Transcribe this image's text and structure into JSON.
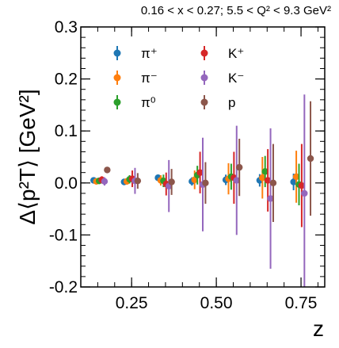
{
  "chart_data": {
    "type": "scatter",
    "title": "0.16 < x < 0.27;  5.5 < Q² < 9.3 GeV²",
    "xlabel": "z",
    "ylabel": "Δ⟨p²T⟩ [GeV²]",
    "xlim": [
      0.1,
      0.82
    ],
    "ylim": [
      -0.2,
      0.3
    ],
    "xticks": [
      0.25,
      0.5,
      0.75
    ],
    "xtick_labels": [
      "0.25",
      "0.50",
      "0.75"
    ],
    "yticks": [
      -0.2,
      -0.1,
      0.0,
      0.1,
      0.2,
      0.3
    ],
    "ytick_labels": [
      "-0.2",
      "-0.1",
      "0.0",
      "0.1",
      "0.2",
      "0.3"
    ],
    "grid": false,
    "legend_position": "top",
    "series": [
      {
        "name": "π⁺",
        "color": "#1f77b4",
        "x": [
          0.138,
          0.228,
          0.328,
          0.428,
          0.528,
          0.628,
          0.728
        ],
        "y": [
          0.005,
          0.002,
          0.01,
          0.003,
          0.006,
          0.005,
          0.002
        ],
        "err": [
          0.004,
          0.004,
          0.006,
          0.008,
          0.01,
          0.012,
          0.016
        ]
      },
      {
        "name": "π⁻",
        "color": "#ff7f0e",
        "x": [
          0.146,
          0.236,
          0.336,
          0.436,
          0.536,
          0.636,
          0.736
        ],
        "y": [
          0.003,
          0.003,
          0.005,
          0.006,
          0.008,
          0.01,
          0.012
        ],
        "err": [
          0.005,
          0.006,
          0.01,
          0.018,
          0.03,
          0.04,
          0.05
        ]
      },
      {
        "name": "π⁰",
        "color": "#2ca02c",
        "x": [
          0.154,
          0.244,
          0.344,
          0.444,
          0.544,
          0.644,
          0.744
        ],
        "y": [
          0.004,
          0.007,
          0.004,
          0.015,
          0.012,
          0.022,
          -0.003
        ],
        "err": [
          0.006,
          0.008,
          0.012,
          0.018,
          0.025,
          0.03,
          0.04
        ]
      },
      {
        "name": "K⁺",
        "color": "#d62728",
        "x": [
          0.162,
          0.252,
          0.352,
          0.452,
          0.552,
          0.652,
          0.752
        ],
        "y": [
          0.006,
          0.008,
          -0.002,
          0.02,
          0.01,
          0.005,
          -0.005
        ],
        "err": [
          0.007,
          0.016,
          0.022,
          0.04,
          0.05,
          0.06,
          0.08
        ]
      },
      {
        "name": "K⁻",
        "color": "#9467bd",
        "x": [
          0.17,
          0.26,
          0.36,
          0.46,
          0.56,
          0.66,
          0.76
        ],
        "y": [
          0.003,
          0.004,
          -0.006,
          -0.003,
          0.005,
          -0.03,
          -0.02
        ],
        "err": [
          0.008,
          0.025,
          0.05,
          0.09,
          0.105,
          0.135,
          0.19
        ]
      },
      {
        "name": "p",
        "color": "#8c564b",
        "x": [
          0.178,
          0.268,
          0.368,
          0.468,
          0.568,
          0.668,
          0.778
        ],
        "y": [
          0.025,
          0.004,
          0.002,
          0.0,
          0.03,
          0.0,
          0.047
        ],
        "err": [
          0.006,
          0.015,
          0.025,
          0.04,
          0.055,
          0.075,
          0.11
        ]
      }
    ]
  }
}
